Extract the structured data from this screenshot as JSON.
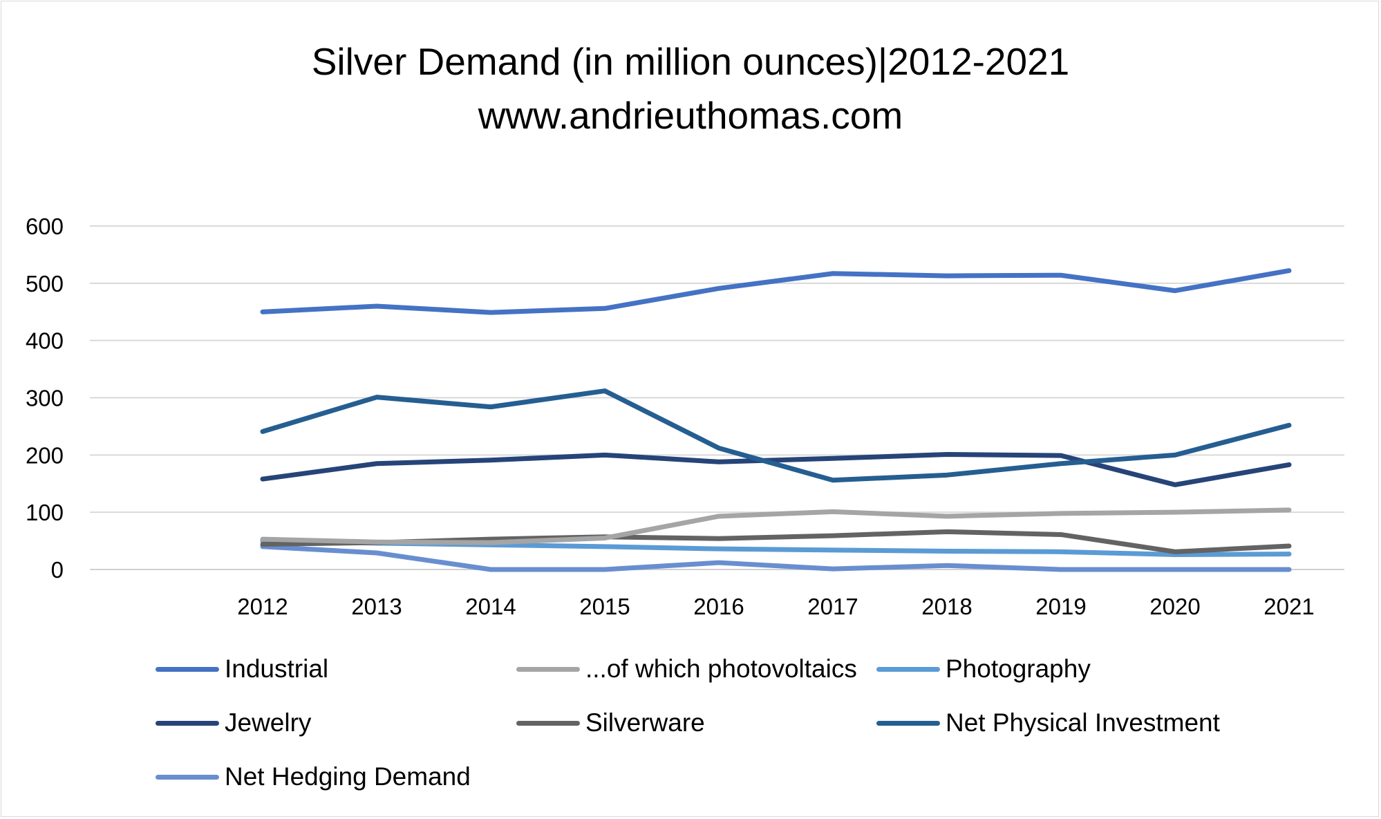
{
  "chart_data": {
    "type": "line",
    "title": "Silver Demand (in million ounces)|2012-2021",
    "subtitle": "www.andrieuthomas.com",
    "xlabel": "",
    "ylabel": "",
    "ylim": [
      0,
      600
    ],
    "yticks": [
      0,
      100,
      200,
      300,
      400,
      500,
      600
    ],
    "categories": [
      "2012",
      "2013",
      "2014",
      "2015",
      "2016",
      "2017",
      "2018",
      "2019",
      "2020",
      "2021"
    ],
    "grid": "horizontal",
    "legend_position": "bottom",
    "series": [
      {
        "name": "Industrial",
        "color": "#4472C4",
        "values": [
          450,
          460,
          449,
          456,
          491,
          517,
          513,
          514,
          487,
          522
        ]
      },
      {
        "name": "...of which photovoltaics",
        "color": "#A5A5A5",
        "values": [
          53,
          48,
          47,
          55,
          93,
          101,
          93,
          98,
          100,
          104
        ]
      },
      {
        "name": "Photography",
        "color": "#5B9BD5",
        "values": [
          50,
          46,
          43,
          40,
          36,
          34,
          32,
          31,
          26,
          27
        ]
      },
      {
        "name": "Jewelry",
        "color": "#264478",
        "values": [
          158,
          185,
          191,
          200,
          188,
          194,
          201,
          199,
          148,
          183
        ]
      },
      {
        "name": "Silverware",
        "color": "#636363",
        "values": [
          44,
          47,
          53,
          57,
          54,
          59,
          66,
          61,
          31,
          41
        ]
      },
      {
        "name": "Net Physical Investment",
        "color": "#255E91",
        "values": [
          241,
          301,
          284,
          312,
          212,
          156,
          165,
          185,
          200,
          252
        ]
      },
      {
        "name": "Net Hedging Demand",
        "color": "#698ED0",
        "values": [
          40,
          29,
          0,
          0,
          12,
          1,
          7,
          0,
          0,
          0
        ]
      }
    ]
  }
}
